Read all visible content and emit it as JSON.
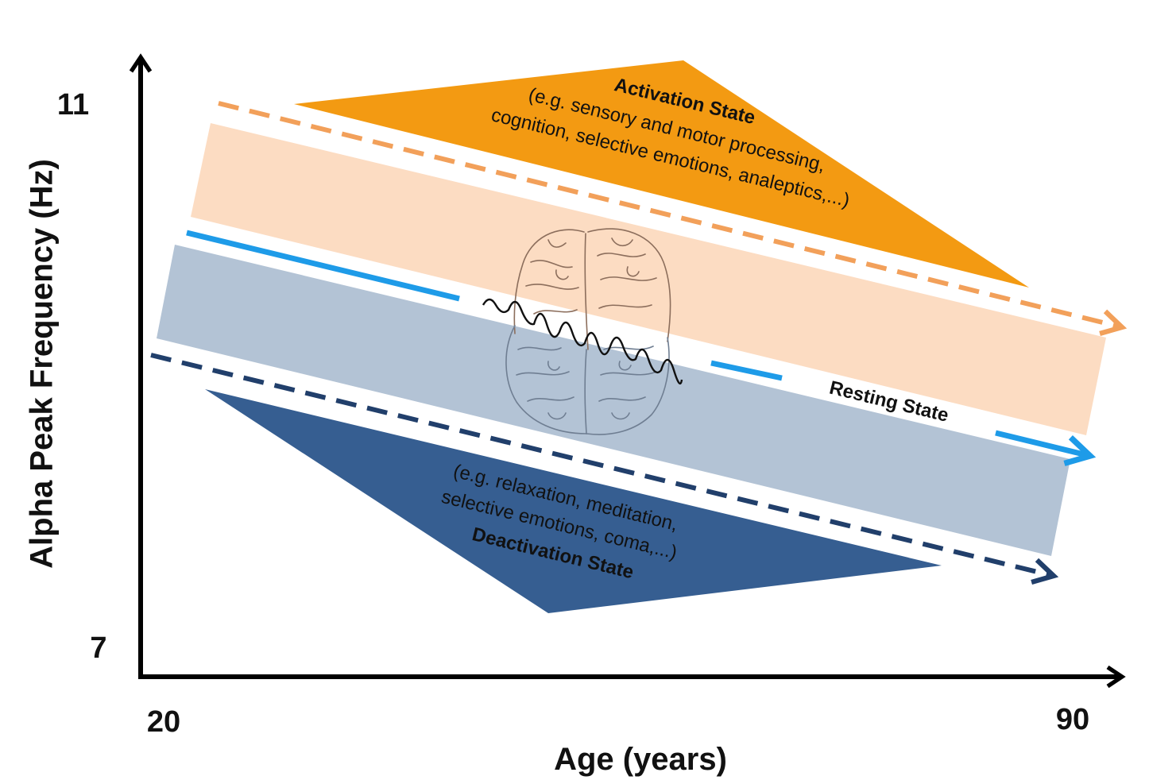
{
  "axes": {
    "y_title": "Alpha Peak Frequency (Hz)",
    "y_tick_top": "11",
    "y_tick_bottom": "7",
    "x_title": "Age (years)",
    "x_tick_left": "20",
    "x_tick_right": "90"
  },
  "activation": {
    "title": "Activation State",
    "desc_line1": "(e.g. sensory and motor processing,",
    "desc_line2": "cognition, selective emotions, analeptics,...)"
  },
  "resting": {
    "title": "Resting State"
  },
  "deactivation": {
    "desc_line1": "(e.g. relaxation, meditation,",
    "desc_line2": "selective emotions, coma,...)",
    "title": "Deactivation State"
  },
  "colors": {
    "activation_fill": "#f39a12",
    "activation_band": "#fcdcc2",
    "activation_dash": "#f2a05a",
    "resting_line": "#1e9be8",
    "resting_band": "#b3c3d5",
    "deactivation_fill": "#365e91",
    "deactivation_dash": "#213f6b",
    "axis": "#000000"
  },
  "icons": [
    "brain-icon",
    "alpha-wave-icon"
  ]
}
